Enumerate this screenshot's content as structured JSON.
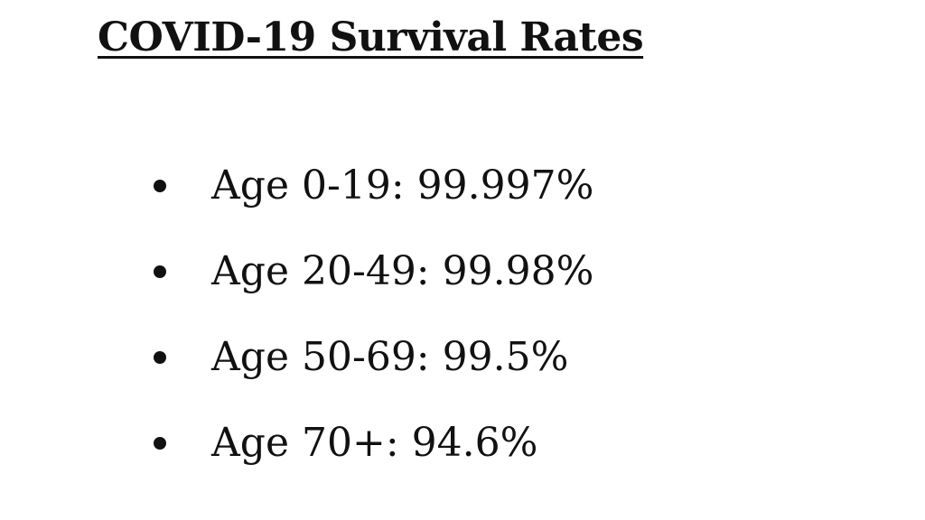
{
  "document": {
    "title": "COVID-19 Survival Rates",
    "items": [
      {
        "text": "Age 0-19: 99.997%"
      },
      {
        "text": "Age 20-49: 99.98%"
      },
      {
        "text": "Age 50-69: 99.5%"
      },
      {
        "text": "Age 70+: 94.6%"
      }
    ]
  }
}
